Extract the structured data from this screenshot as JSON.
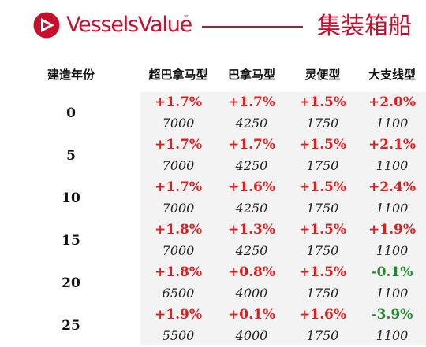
{
  "brand": {
    "name": "VesselsValue",
    "tm": "™",
    "title": "集装箱船"
  },
  "colors": {
    "brand_red": "#c8102e",
    "positive": "#e21b1b",
    "negative": "#1f8a2e"
  },
  "table": {
    "age_header": "建造年份",
    "columns": [
      "超巴拿马型",
      "巴拿马型",
      "灵便型",
      "大支线型"
    ],
    "rows": [
      {
        "age": "0",
        "changes": [
          "+1.7%",
          "+1.7%",
          "+1.5%",
          "+2.0%"
        ],
        "values": [
          "7000",
          "4250",
          "1750",
          "1100"
        ]
      },
      {
        "age": "5",
        "changes": [
          "+1.7%",
          "+1.7%",
          "+1.5%",
          "+2.1%"
        ],
        "values": [
          "7000",
          "4250",
          "1750",
          "1100"
        ]
      },
      {
        "age": "10",
        "changes": [
          "+1.7%",
          "+1.6%",
          "+1.5%",
          "+2.4%"
        ],
        "values": [
          "7000",
          "4250",
          "1750",
          "1100"
        ]
      },
      {
        "age": "15",
        "changes": [
          "+1.8%",
          "+1.3%",
          "+1.5%",
          "+1.9%"
        ],
        "values": [
          "7000",
          "4250",
          "1750",
          "1100"
        ]
      },
      {
        "age": "20",
        "changes": [
          "+1.8%",
          "+0.8%",
          "+1.5%",
          "-0.1%"
        ],
        "values": [
          "6500",
          "4000",
          "1750",
          "1100"
        ]
      },
      {
        "age": "25",
        "changes": [
          "+1.9%",
          "+0.1%",
          "+1.6%",
          "-3.9%"
        ],
        "values": [
          "5500",
          "4000",
          "1750",
          "1100"
        ]
      }
    ]
  }
}
